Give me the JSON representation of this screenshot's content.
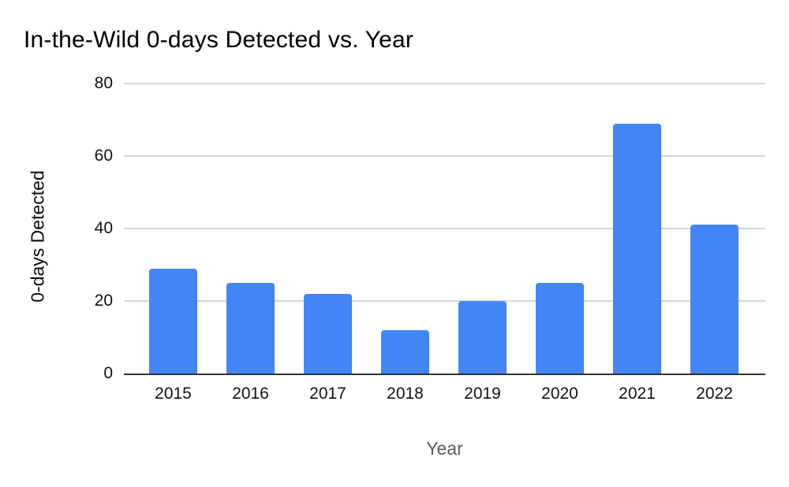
{
  "title": "In-the-Wild 0-days Detected vs. Year",
  "chart_data": {
    "type": "bar",
    "title": "In-the-Wild 0-days Detected vs. Year",
    "categories": [
      "2015",
      "2016",
      "2017",
      "2018",
      "2019",
      "2020",
      "2021",
      "2022"
    ],
    "values": [
      29,
      25,
      22,
      12,
      20,
      25,
      69,
      41
    ],
    "xlabel": "Year",
    "ylabel": "0-days Detected",
    "yticks": [
      0,
      20,
      40,
      60,
      80
    ],
    "ylim": [
      0,
      80
    ],
    "grid": true,
    "legend_position": "none",
    "bar_color": "#4285f4",
    "gridline_color": "#d6d6d6",
    "axis_line_color": "#333333",
    "tick_label_color": "#111111",
    "xlabel_color": "#5a5a5a",
    "title_color": "#000000"
  }
}
